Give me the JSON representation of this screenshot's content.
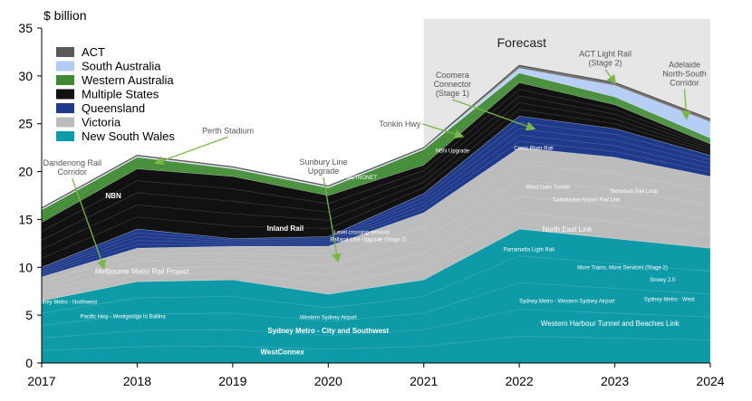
{
  "chart_data": {
    "type": "area",
    "title": "",
    "ylabel": "$ billion",
    "xlabel": "",
    "x": [
      2017,
      2018,
      2019,
      2020,
      2021,
      2022,
      2023,
      2024
    ],
    "ylim": [
      0,
      35
    ],
    "yticks": [
      0,
      5,
      10,
      15,
      20,
      25,
      30,
      35
    ],
    "forecast": {
      "label": "Forecast",
      "from": 2021,
      "to": 2024
    },
    "series": [
      {
        "name": "New South Wales",
        "color": "#0f9aa8",
        "values": [
          6.5,
          8.5,
          8.7,
          7.2,
          8.7,
          14.0,
          13.0,
          12.0
        ]
      },
      {
        "name": "Victoria",
        "color": "#bcbcbc",
        "values": [
          2.5,
          3.5,
          3.5,
          5.0,
          7.0,
          8.5,
          8.5,
          7.5
        ]
      },
      {
        "name": "Queensland",
        "color": "#1f3a8a",
        "values": [
          1.0,
          2.0,
          0.8,
          1.0,
          2.0,
          3.3,
          3.0,
          2.2
        ]
      },
      {
        "name": "Multiple States",
        "color": "#111111",
        "values": [
          4.7,
          6.3,
          6.5,
          4.3,
          3.0,
          3.5,
          2.5,
          1.2
        ]
      },
      {
        "name": "Western Australia",
        "color": "#3f8a32",
        "values": [
          1.3,
          1.2,
          0.8,
          0.8,
          1.6,
          1.0,
          0.8,
          0.6
        ]
      },
      {
        "name": "South Australia",
        "color": "#b3ccf5",
        "values": [
          0.1,
          0.1,
          0.1,
          0.1,
          0.1,
          0.5,
          1.2,
          1.7
        ]
      },
      {
        "name": "ACT",
        "color": "#5a5a5a",
        "values": [
          0.1,
          0.1,
          0.1,
          0.1,
          0.1,
          0.3,
          0.3,
          0.3
        ]
      }
    ],
    "legend": {
      "placement": "top-left",
      "entries": [
        "ACT",
        "South Australia",
        "Western Australia",
        "Multiple States",
        "Queensland",
        "Victoria",
        "New South Wales"
      ]
    },
    "inside_labels": [
      {
        "text": "NBN",
        "x": 2017.75,
        "y": 17.2,
        "bold": true,
        "size": 8
      },
      {
        "text": "Inland Rail",
        "x": 2019.55,
        "y": 13.8,
        "bold": true,
        "size": 8
      },
      {
        "text": "Melbourne Metro Rail Project",
        "x": 2018.05,
        "y": 9.3,
        "bold": false,
        "size": 8
      },
      {
        "text": "Sydney Metro - Northwest",
        "x": 2017.25,
        "y": 6.2,
        "bold": false,
        "size": 6
      },
      {
        "text": "Pacific Hwy - Woolgoolga to Ballina",
        "x": 2017.85,
        "y": 4.7,
        "bold": false,
        "size": 6
      },
      {
        "text": "Western Sydney Airport",
        "x": 2020.0,
        "y": 4.6,
        "bold": false,
        "size": 6
      },
      {
        "text": "Sydney Metro - City and Southwest",
        "x": 2020.0,
        "y": 3.1,
        "bold": true,
        "size": 8
      },
      {
        "text": "WestConnex",
        "x": 2019.52,
        "y": 0.9,
        "bold": true,
        "size": 8
      },
      {
        "text": "METRONET",
        "x": 2020.35,
        "y": 19.2,
        "bold": false,
        "size": 6
      },
      {
        "text": "NBN Upgrade",
        "x": 2021.3,
        "y": 22.0,
        "bold": false,
        "size": 6
      },
      {
        "text": "Cross River Rail",
        "x": 2022.15,
        "y": 22.3,
        "bold": false,
        "size": 6
      },
      {
        "text": "West Gate Tunnel",
        "x": 2022.3,
        "y": 18.2,
        "bold": false,
        "size": 6
      },
      {
        "text": "Suburban Rail Loop",
        "x": 2023.2,
        "y": 17.8,
        "bold": false,
        "size": 6
      },
      {
        "text": "Tullamarine Airport Rail Link",
        "x": 2022.7,
        "y": 16.9,
        "bold": false,
        "size": 6
      },
      {
        "text": "North East Link",
        "x": 2022.5,
        "y": 13.7,
        "bold": false,
        "size": 8
      },
      {
        "text": "Level crossing removal",
        "x": 2020.35,
        "y": 13.5,
        "bold": false,
        "size": 6
      },
      {
        "text": "Ballarat Line Upgrade (Stage 2)",
        "x": 2020.42,
        "y": 12.7,
        "bold": false,
        "size": 6
      },
      {
        "text": "Parramatta Light Rail",
        "x": 2022.1,
        "y": 11.7,
        "bold": false,
        "size": 6
      },
      {
        "text": "More Trains, More Services (Stage 2)",
        "x": 2023.08,
        "y": 9.8,
        "bold": false,
        "size": 6
      },
      {
        "text": "Snowy 2.0",
        "x": 2023.5,
        "y": 8.5,
        "bold": false,
        "size": 6
      },
      {
        "text": "Sydney Metro - Western Sydney Airport",
        "x": 2022.5,
        "y": 6.3,
        "bold": false,
        "size": 6
      },
      {
        "text": "Sydney Metro - West",
        "x": 2023.57,
        "y": 6.5,
        "bold": false,
        "size": 6
      },
      {
        "text": "Western Harbour Tunnel and Beaches Link",
        "x": 2022.95,
        "y": 3.9,
        "bold": false,
        "size": 8
      }
    ],
    "callouts": [
      {
        "lines": [
          "Perth Stadium"
        ],
        "text_x": 2018.95,
        "text_y": 24.0,
        "arrow_to_x": 2018.2,
        "arrow_to_y": 20.9
      },
      {
        "lines": [
          "Dandenong Rail",
          "Corridor"
        ],
        "text_x": 2017.32,
        "text_y": 20.6,
        "arrow_to_x": 2017.65,
        "arrow_to_y": 10.0
      },
      {
        "lines": [
          "Sunbury Line",
          "Upgrade"
        ],
        "text_x": 2019.95,
        "text_y": 20.7,
        "arrow_to_x": 2020.1,
        "arrow_to_y": 10.7
      },
      {
        "lines": [
          "Tonkin Hwy"
        ],
        "text_x": 2020.75,
        "text_y": 24.7,
        "arrow_to_x": 2021.4,
        "arrow_to_y": 23.7
      },
      {
        "lines": [
          "Coomera",
          "Connector",
          "(Stage 1)"
        ],
        "text_x": 2021.3,
        "text_y": 29.8,
        "arrow_to_x": 2022.15,
        "arrow_to_y": 24.5
      },
      {
        "lines": [
          "ACT Light Rail",
          "(Stage 2)"
        ],
        "text_x": 2022.9,
        "text_y": 32.0,
        "arrow_to_x": 2023.0,
        "arrow_to_y": 29.3
      },
      {
        "lines": [
          "Adelaide",
          "North-South",
          "Corridor"
        ],
        "text_x": 2023.73,
        "text_y": 30.9,
        "arrow_to_x": 2023.75,
        "arrow_to_y": 25.6
      }
    ]
  }
}
